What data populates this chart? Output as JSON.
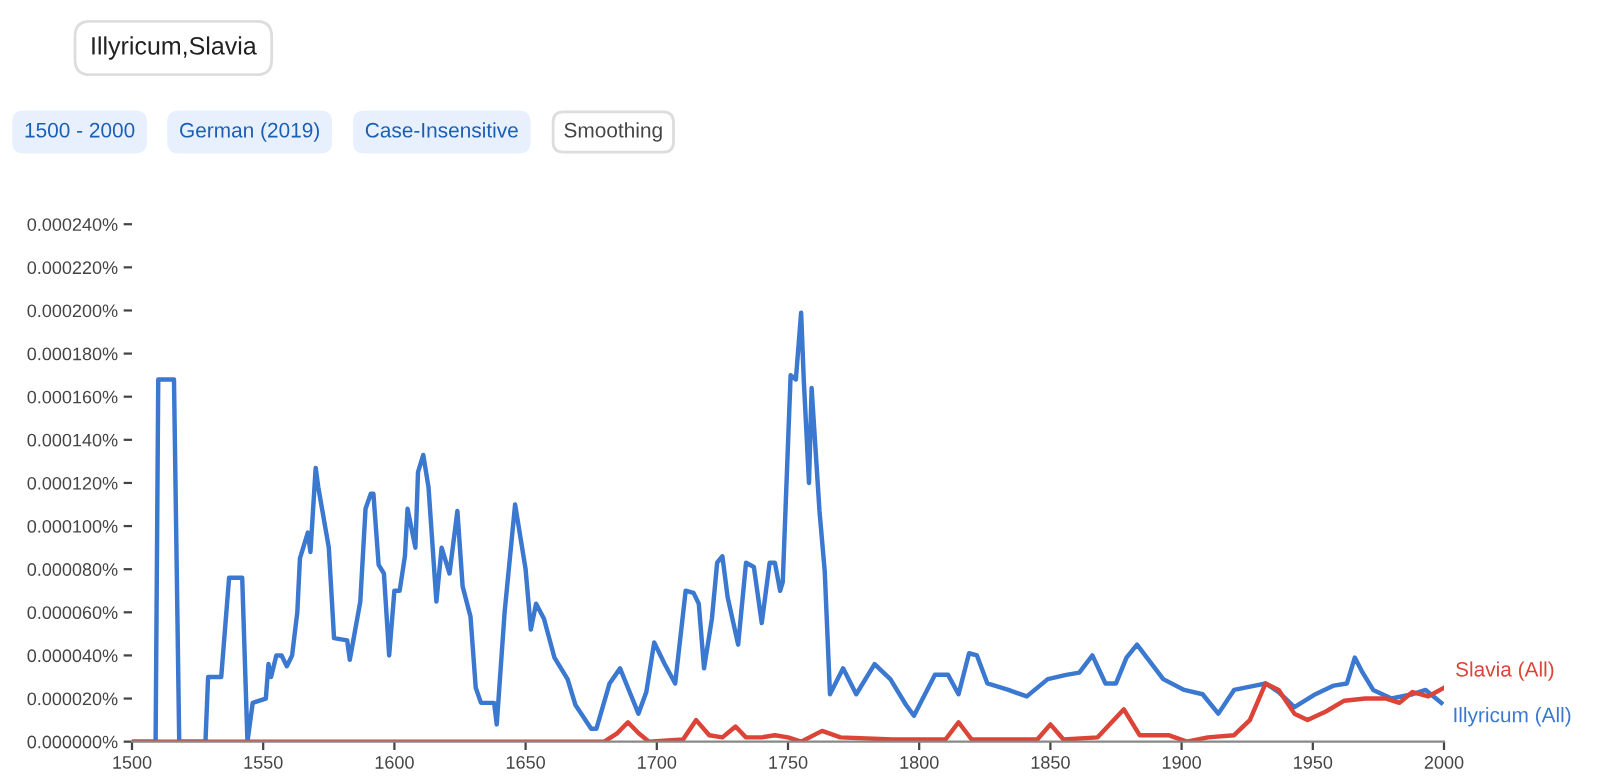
{
  "chart_data": {
    "type": "line",
    "title": "Illyricum,Slavia",
    "annotations": [
      "1500 - 2000",
      "German (2019)",
      "Case-Insensitive",
      "Smoothing"
    ],
    "xlim": [
      1500,
      2000
    ],
    "xticks": [
      1500,
      1550,
      1600,
      1650,
      1700,
      1750,
      1800,
      1850,
      1900,
      1950,
      2000
    ],
    "ylim": [
      0,
      0.00024
    ],
    "yticks": [
      {
        "value": 0,
        "label": "0.000000%"
      },
      {
        "value": 2e-05,
        "label": "0.000020%"
      },
      {
        "value": 4e-05,
        "label": "0.000040%"
      },
      {
        "value": 6e-05,
        "label": "0.000060%"
      },
      {
        "value": 8e-05,
        "label": "0.000080%"
      },
      {
        "value": 0.0001,
        "label": "0.000100%"
      },
      {
        "value": 0.00012,
        "label": "0.000120%"
      },
      {
        "value": 0.00014,
        "label": "0.000140%"
      },
      {
        "value": 0.00016,
        "label": "0.000160%"
      },
      {
        "value": 0.00018,
        "label": "0.000180%"
      },
      {
        "value": 0.0002,
        "label": "0.000200%"
      },
      {
        "value": 0.00022,
        "label": "0.000220%"
      },
      {
        "value": 0.00024,
        "label": "0.000240%"
      }
    ],
    "grid": false,
    "legend": false,
    "marker": "none",
    "line_style": "solid",
    "series": [
      {
        "name": "Illyricum (All)",
        "color": "#3b78d0",
        "x": [
          1500,
          1509,
          1510,
          1516,
          1518,
          1528,
          1529,
          1534,
          1537,
          1542,
          1544,
          1546,
          1551,
          1552,
          1553,
          1555,
          1557,
          1559,
          1561,
          1563,
          1564,
          1567,
          1568,
          1570,
          1571,
          1575,
          1577,
          1582,
          1583,
          1587,
          1589,
          1591,
          1592,
          1594,
          1596,
          1598,
          1600,
          1602,
          1604,
          1605,
          1608,
          1609,
          1611,
          1613,
          1616,
          1618,
          1621,
          1624,
          1626,
          1629,
          1631,
          1633,
          1638,
          1639,
          1642,
          1646,
          1650,
          1652,
          1654,
          1657,
          1661,
          1666,
          1669,
          1675,
          1677,
          1682,
          1686,
          1690,
          1693,
          1696,
          1699,
          1703,
          1707,
          1711,
          1714,
          1716,
          1718,
          1721,
          1723,
          1725,
          1727,
          1731,
          1734,
          1737,
          1740,
          1743,
          1745,
          1747,
          1748,
          1751,
          1753,
          1755,
          1756,
          1758,
          1759,
          1762,
          1764,
          1766,
          1771,
          1776,
          1783,
          1789,
          1795,
          1798,
          1806,
          1811,
          1815,
          1819,
          1822,
          1826,
          1834,
          1841,
          1849,
          1856,
          1861,
          1866,
          1871,
          1875,
          1879,
          1883,
          1888,
          1893,
          1901,
          1908,
          1914,
          1920,
          1928,
          1932,
          1937,
          1943,
          1951,
          1958,
          1963,
          1966,
          1969,
          1973,
          1980,
          1988,
          1993,
          1999
        ],
        "values": [
          0,
          0,
          0.000168,
          0.000168,
          0,
          0,
          3e-05,
          3e-05,
          7.6e-05,
          7.6e-05,
          0,
          1.8e-05,
          2e-05,
          3.6e-05,
          3e-05,
          4e-05,
          4e-05,
          3.5e-05,
          4e-05,
          6e-05,
          8.5e-05,
          9.7e-05,
          8.8e-05,
          0.000127,
          0.000118,
          9e-05,
          4.8e-05,
          4.7e-05,
          3.8e-05,
          6.5e-05,
          0.000108,
          0.000115,
          0.000115,
          8.2e-05,
          7.8e-05,
          4e-05,
          7e-05,
          7e-05,
          8.6e-05,
          0.000108,
          9e-05,
          0.000125,
          0.000133,
          0.000118,
          6.5e-05,
          9e-05,
          7.8e-05,
          0.000107,
          7.2e-05,
          5.8e-05,
          2.5e-05,
          1.8e-05,
          1.8e-05,
          8e-06,
          6e-05,
          0.00011,
          8e-05,
          5.2e-05,
          6.4e-05,
          5.7e-05,
          3.9e-05,
          2.9e-05,
          1.7e-05,
          6e-06,
          6e-06,
          2.7e-05,
          3.4e-05,
          2.2e-05,
          1.3e-05,
          2.3e-05,
          4.6e-05,
          3.6e-05,
          2.7e-05,
          7e-05,
          6.9e-05,
          6.4e-05,
          3.4e-05,
          5.7e-05,
          8.3e-05,
          8.6e-05,
          6.7e-05,
          4.5e-05,
          8.3e-05,
          8.1e-05,
          5.5e-05,
          8.3e-05,
          8.3e-05,
          7e-05,
          7.4e-05,
          0.00017,
          0.000168,
          0.000199,
          0.000168,
          0.00012,
          0.000164,
          0.000107,
          7.9e-05,
          2.2e-05,
          3.4e-05,
          2.2e-05,
          3.6e-05,
          2.9e-05,
          1.7e-05,
          1.2e-05,
          3.1e-05,
          3.1e-05,
          2.2e-05,
          4.1e-05,
          4e-05,
          2.7e-05,
          2.4e-05,
          2.1e-05,
          2.9e-05,
          3.1e-05,
          3.2e-05,
          4e-05,
          2.7e-05,
          2.7e-05,
          3.9e-05,
          4.5e-05,
          3.7e-05,
          2.9e-05,
          2.4e-05,
          2.2e-05,
          1.3e-05,
          2.4e-05,
          2.6e-05,
          2.7e-05,
          2.3e-05,
          1.6e-05,
          2.2e-05,
          2.6e-05,
          2.7e-05,
          3.9e-05,
          3.2e-05,
          2.4e-05,
          2e-05,
          2.2e-05,
          2.4e-05,
          1.8e-05
        ]
      },
      {
        "name": "Slavia (All)",
        "color": "#db4437",
        "x": [
          1500,
          1680,
          1685,
          1689,
          1693,
          1697,
          1710,
          1715,
          1720,
          1725,
          1730,
          1734,
          1740,
          1745,
          1750,
          1755,
          1763,
          1770,
          1790,
          1810,
          1815,
          1820,
          1845,
          1850,
          1855,
          1868,
          1878,
          1884,
          1895,
          1902,
          1910,
          1920,
          1926,
          1932,
          1937,
          1943,
          1948,
          1955,
          1962,
          1970,
          1978,
          1983,
          1988,
          1994,
          2000
        ],
        "values": [
          0,
          0,
          4e-06,
          9e-06,
          4e-06,
          0,
          1e-06,
          1e-05,
          3e-06,
          2e-06,
          7e-06,
          2e-06,
          2e-06,
          3e-06,
          2e-06,
          0,
          5e-06,
          2e-06,
          1e-06,
          1e-06,
          9e-06,
          1e-06,
          1e-06,
          8e-06,
          1e-06,
          2e-06,
          1.5e-05,
          3e-06,
          3e-06,
          0,
          2e-06,
          3e-06,
          1e-05,
          2.7e-05,
          2.4e-05,
          1.3e-05,
          1e-05,
          1.4e-05,
          1.9e-05,
          2e-05,
          2e-05,
          1.8e-05,
          2.3e-05,
          2.1e-05,
          2.5e-05
        ]
      }
    ]
  }
}
